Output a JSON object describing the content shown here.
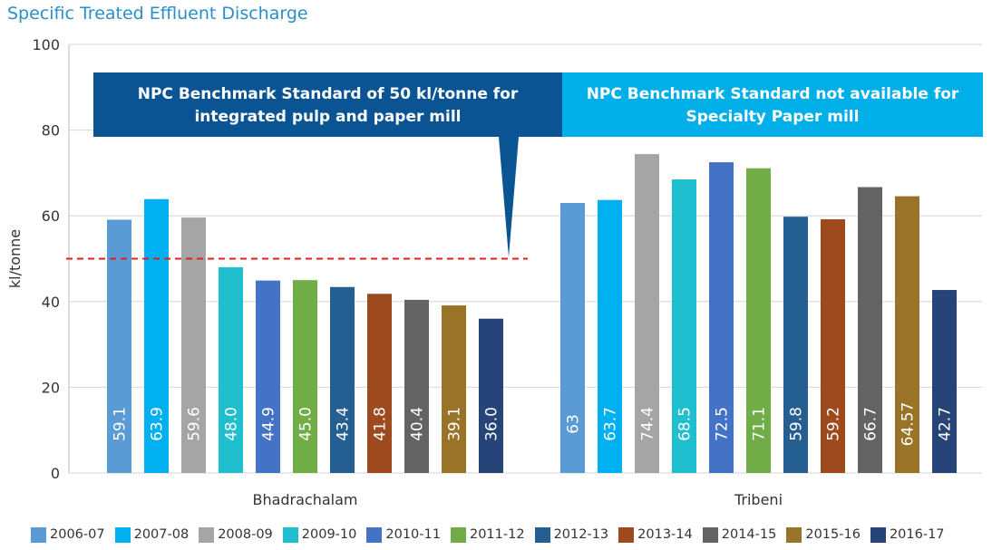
{
  "chart_data": {
    "type": "bar",
    "title": "Specific Treated Effluent Discharge",
    "ylabel": "kl/tonne",
    "xlabel": "",
    "ylim": [
      0,
      100
    ],
    "yticks": [
      "0",
      "20",
      "40",
      "60",
      "80",
      "100"
    ],
    "grid": true,
    "legend_position": "bottom",
    "groups": [
      "Bhadrachalam",
      "Tribeni"
    ],
    "series": [
      {
        "name": "2006-07",
        "color": "#5b9bd5",
        "values": [
          59.1,
          63
        ],
        "labels": [
          "59.1",
          "63"
        ]
      },
      {
        "name": "2007-08",
        "color": "#00b0f0",
        "values": [
          63.9,
          63.7
        ],
        "labels": [
          "63.9",
          "63.7"
        ]
      },
      {
        "name": "2008-09",
        "color": "#a5a5a5",
        "values": [
          59.6,
          74.4
        ],
        "labels": [
          "59.6",
          "74.4"
        ]
      },
      {
        "name": "2009-10",
        "color": "#1fbfcf",
        "values": [
          48.0,
          68.5
        ],
        "labels": [
          "48.0",
          "68.5"
        ]
      },
      {
        "name": "2010-11",
        "color": "#4472c4",
        "values": [
          44.9,
          72.5
        ],
        "labels": [
          "44.9",
          "72.5"
        ]
      },
      {
        "name": "2011-12",
        "color": "#70ad47",
        "values": [
          45.0,
          71.1
        ],
        "labels": [
          "45.0",
          "71.1"
        ]
      },
      {
        "name": "2012-13",
        "color": "#255e91",
        "values": [
          43.4,
          59.8
        ],
        "labels": [
          "43.4",
          "59.8"
        ]
      },
      {
        "name": "2013-14",
        "color": "#9e4a1f",
        "values": [
          41.8,
          59.2
        ],
        "labels": [
          "41.8",
          "59.2"
        ]
      },
      {
        "name": "2014-15",
        "color": "#636363",
        "values": [
          40.4,
          66.7
        ],
        "labels": [
          "40.4",
          "66.7"
        ]
      },
      {
        "name": "2015-16",
        "color": "#997328",
        "values": [
          39.1,
          64.57
        ],
        "labels": [
          "39.1",
          "64.57"
        ]
      },
      {
        "name": "2016-17",
        "color": "#264478",
        "values": [
          36.0,
          42.7
        ],
        "labels": [
          "36.0",
          "42.7"
        ]
      }
    ],
    "benchmark_line": {
      "value": 50,
      "color": "#e02020"
    },
    "annotations": [
      {
        "group": "Bhadrachalam",
        "text_lines": [
          "NPC Benchmark Standard of 50 kl/tonne for",
          "integrated pulp and paper mill"
        ],
        "color": "#0a5494"
      },
      {
        "group": "Tribeni",
        "text_lines": [
          "NPC Benchmark Standard not available for",
          "Specialty Paper mill"
        ],
        "color": "#00aee8"
      }
    ]
  }
}
